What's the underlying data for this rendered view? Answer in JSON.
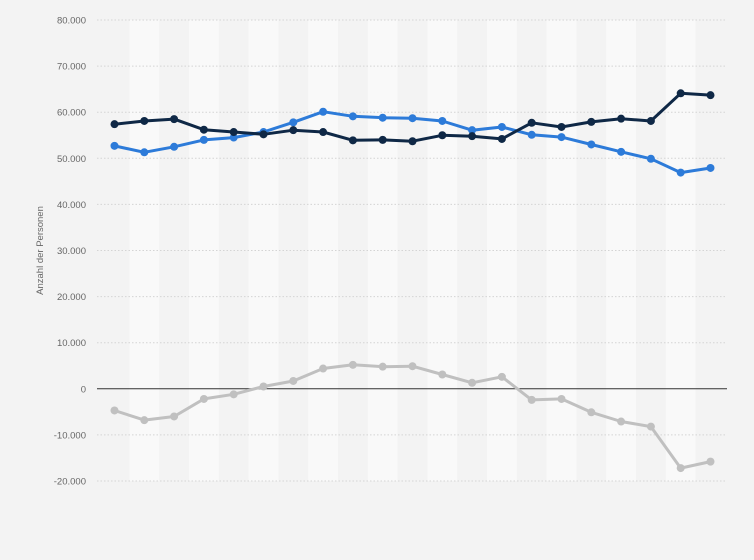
{
  "chart_data": {
    "type": "line",
    "title": "",
    "xlabel": "",
    "ylabel": "Anzahl der Personen",
    "ylim": [
      -20000,
      80000
    ],
    "yticks": [
      80000,
      70000,
      60000,
      50000,
      40000,
      30000,
      20000,
      10000,
      0,
      -10000,
      -20000
    ],
    "ytick_labels": [
      "80.000",
      "70.000",
      "60.000",
      "50.000",
      "40.000",
      "30.000",
      "20.000",
      "10.000",
      "0",
      "-10.000",
      "-20.000"
    ],
    "x": [
      1,
      2,
      3,
      4,
      5,
      6,
      7,
      8,
      9,
      10,
      11,
      12,
      13,
      14,
      15,
      16,
      17,
      18,
      19,
      20,
      21
    ],
    "grid": true,
    "alternating_bands": true,
    "legend": "none",
    "series": [
      {
        "color": "#2d7bd9",
        "values": [
          52700,
          51300,
          52500,
          54000,
          54500,
          55700,
          57800,
          60100,
          59100,
          58800,
          58700,
          58100,
          56100,
          56800,
          55100,
          54600,
          53000,
          51400,
          49900,
          46900,
          47900
        ]
      },
      {
        "color": "#0f2846",
        "values": [
          57400,
          58100,
          58500,
          56200,
          55700,
          55200,
          56100,
          55700,
          53900,
          54000,
          53700,
          55000,
          54800,
          54200,
          57700,
          56800,
          57900,
          58600,
          58100,
          64100,
          63700
        ]
      },
      {
        "color": "#c0c0c0",
        "values": [
          -4700,
          -6800,
          -6000,
          -2200,
          -1200,
          500,
          1700,
          4400,
          5200,
          4800,
          4900,
          3100,
          1300,
          2600,
          -2400,
          -2200,
          -5100,
          -7100,
          -8200,
          -17200,
          -15800
        ]
      }
    ]
  }
}
